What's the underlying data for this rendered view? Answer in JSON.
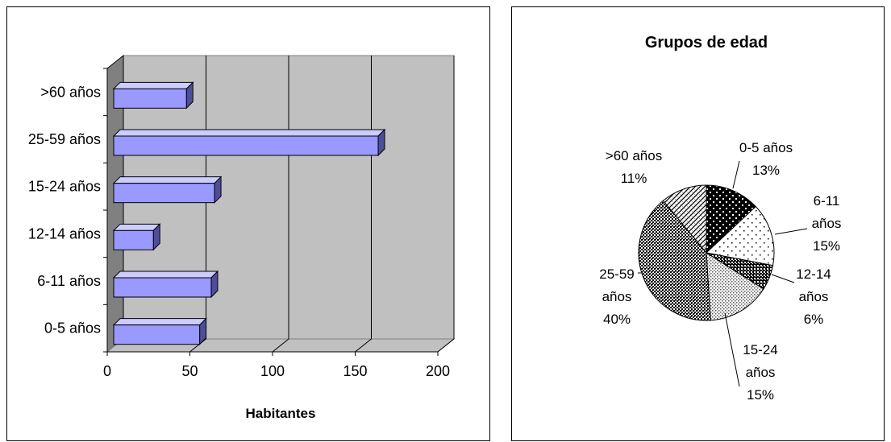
{
  "chart_data": [
    {
      "type": "bar",
      "orientation": "horizontal",
      "title": "",
      "xlabel": "Habitantes",
      "ylabel": "",
      "categories": [
        "0-5 años",
        "6-11 años",
        "12-14 años",
        "15-24 años",
        "25-59 años",
        ">60 años"
      ],
      "values": [
        52,
        59,
        24,
        61,
        160,
        44
      ],
      "xlim": [
        0,
        200
      ],
      "xticks": [
        "0",
        "50",
        "100",
        "150",
        "200"
      ],
      "grid": true,
      "legend": "none",
      "colors": {
        "bar": "#9999ff",
        "wall": "#c0c0c0",
        "floor": "#808080"
      }
    },
    {
      "type": "pie",
      "title": "Grupos de edad",
      "slices": [
        {
          "label": "0-5 años",
          "label_lines": [
            "0-5 años",
            "13%"
          ],
          "value": 13,
          "pattern": "pat-dots-black"
        },
        {
          "label": "6-11 años",
          "label_lines": [
            "6-11",
            "años",
            "15%"
          ],
          "value": 15,
          "pattern": "pat-dots-light"
        },
        {
          "label": "12-14 años",
          "label_lines": [
            "12-14",
            "años",
            "6%"
          ],
          "value": 6,
          "pattern": "pat-checker-dark"
        },
        {
          "label": "15-24 años",
          "label_lines": [
            "15-24",
            "años",
            "15%"
          ],
          "value": 15,
          "pattern": "pat-dots-small"
        },
        {
          "label": "25-59 años",
          "label_lines": [
            "25-59",
            "años",
            "40%"
          ],
          "value": 40,
          "pattern": "pat-checker-mid"
        },
        {
          "label": ">60 años",
          "label_lines": [
            ">60 años",
            "11%"
          ],
          "value": 11,
          "pattern": "pat-diag"
        }
      ],
      "legend": "none"
    }
  ]
}
